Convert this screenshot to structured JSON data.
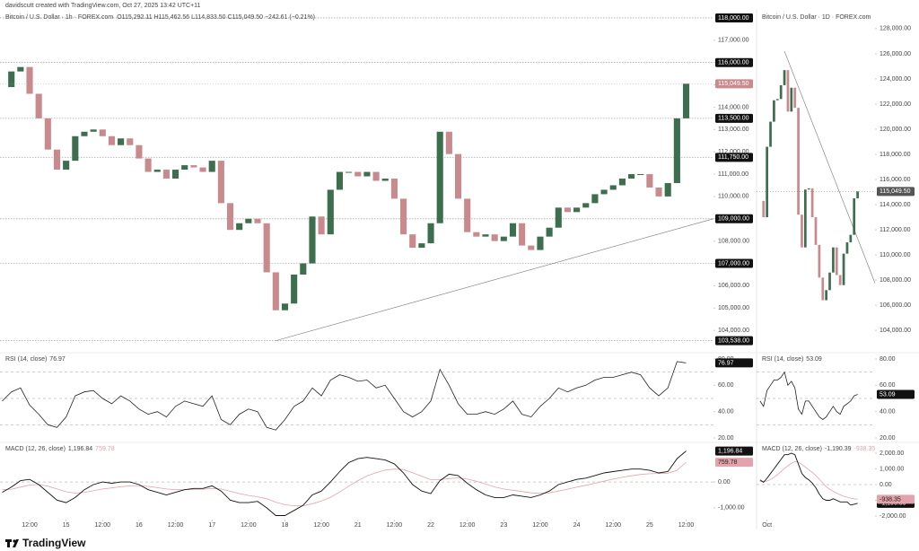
{
  "header": {
    "credit": "davidscutt created with TradingView.com, Oct 27, 2025 13:42 UTC+11"
  },
  "footer": {
    "logo": "TradingView"
  },
  "chart_data": [
    {
      "type": "candlestick",
      "title": "Bitcoin / U.S. Dollar · 1h · FOREX.com",
      "ohlc_text": "O115,292.11 H115,462.56 L114,833.50 C115,049.50 −242.61 (−0.21%)",
      "up_color": "#3d6e4e",
      "down_color": "#c98a8e",
      "close": [
        114900,
        115600,
        115800,
        114600,
        113500,
        112100,
        111200,
        111600,
        112700,
        112900,
        113000,
        112700,
        112300,
        112600,
        112300,
        111700,
        111100,
        111200,
        110800,
        111200,
        111400,
        111300,
        111100,
        111600,
        109700,
        108500,
        108800,
        109000,
        108800,
        106600,
        104900,
        105200,
        106500,
        107000,
        109100,
        108300,
        110300,
        111100,
        111100,
        110900,
        111100,
        110700,
        110800,
        109900,
        108300,
        107700,
        107900,
        108800,
        112900,
        111900,
        109900,
        108400,
        108200,
        108300,
        108000,
        108200,
        108800,
        107800,
        107600,
        108200,
        108600,
        109500,
        109300,
        109500,
        109700,
        110100,
        110300,
        110500,
        110800,
        111000,
        111000,
        110400,
        110000,
        110600,
        113500,
        115050
      ],
      "xlim": [
        -0.25,
        78
      ],
      "xticks": [
        {
          "value": 3,
          "label": "12:00"
        },
        {
          "value": 7,
          "label": "15"
        },
        {
          "value": 11,
          "label": "12:00"
        },
        {
          "value": 15,
          "label": "16"
        },
        {
          "value": 19,
          "label": "12:00"
        },
        {
          "value": 23,
          "label": "17"
        },
        {
          "value": 27,
          "label": "12:00"
        },
        {
          "value": 31,
          "label": "18"
        },
        {
          "value": 35,
          "label": "12:00"
        },
        {
          "value": 39,
          "label": "21"
        },
        {
          "value": 43,
          "label": "12:00"
        },
        {
          "value": 47,
          "label": "22"
        },
        {
          "value": 51,
          "label": "12:00"
        },
        {
          "value": 55,
          "label": "23"
        },
        {
          "value": 59,
          "label": "12:00"
        },
        {
          "value": 63,
          "label": "24"
        },
        {
          "value": 67,
          "label": "12:00"
        },
        {
          "value": 71,
          "label": "25"
        },
        {
          "value": 75,
          "label": "12:00"
        }
      ],
      "ylim": [
        103120,
        118320
      ],
      "yticks": [
        {
          "value": 104000,
          "label": "104,000.00"
        },
        {
          "value": 105000,
          "label": "105,000.00"
        },
        {
          "value": 106000,
          "label": "106,000.00"
        },
        {
          "value": 107000,
          "label": "107,000.00"
        },
        {
          "value": 108000,
          "label": "108,000.00"
        },
        {
          "value": 109000,
          "label": "109,000.00"
        },
        {
          "value": 110000,
          "label": "110,000.00"
        },
        {
          "value": 111000,
          "label": "111,000.00"
        },
        {
          "value": 112000,
          "label": "112,000.00"
        },
        {
          "value": 113000,
          "label": "113,000.00"
        },
        {
          "value": 114000,
          "label": "114,000.00"
        },
        {
          "value": 115000,
          "label": "115,000.00"
        },
        {
          "value": 116000,
          "label": "116,000.00"
        },
        {
          "value": 117000,
          "label": "117,000.00"
        }
      ],
      "levels": [
        {
          "value": 118000,
          "label": "118,000.00"
        },
        {
          "value": 116000,
          "label": "116,000.00"
        },
        {
          "value": 113500,
          "label": "113,500.00"
        },
        {
          "value": 111750,
          "label": "111,750.00"
        },
        {
          "value": 109000,
          "label": "109,000.00"
        },
        {
          "value": 107000,
          "label": "107,000.00"
        },
        {
          "value": 103538,
          "label": "103,538.00"
        }
      ],
      "last_price": {
        "value": 115049.5,
        "label": "115,049.50",
        "color": "#c98a8e"
      },
      "trendline": {
        "x": [
          30,
          78
        ],
        "y": [
          103538,
          109000
        ]
      },
      "rsi": {
        "name": "RSI (14, close)",
        "value_label": "76.97",
        "color": "#222222",
        "values": [
          48,
          55,
          58,
          45,
          38,
          30,
          28,
          36,
          52,
          55,
          56,
          50,
          46,
          52,
          48,
          42,
          38,
          40,
          36,
          44,
          48,
          46,
          44,
          52,
          34,
          30,
          38,
          42,
          40,
          28,
          26,
          34,
          44,
          48,
          58,
          52,
          64,
          68,
          66,
          63,
          64,
          58,
          60,
          50,
          40,
          36,
          40,
          48,
          72,
          60,
          46,
          38,
          38,
          40,
          38,
          42,
          48,
          38,
          36,
          44,
          50,
          58,
          55,
          58,
          60,
          64,
          66,
          66,
          68,
          70,
          68,
          58,
          52,
          58,
          78,
          76.97
        ],
        "ylim": [
          17.3,
          83.4
        ],
        "yticks": [
          {
            "value": 80,
            "label": "80.00"
          },
          {
            "value": 60,
            "label": "60.00"
          },
          {
            "value": 40,
            "label": "40.00"
          },
          {
            "value": 20,
            "label": "20.00"
          }
        ],
        "levels": [
          70,
          50,
          30
        ]
      },
      "macd": {
        "name": "MACD (12, 26, close)",
        "color": "#111111",
        "signal_color": "#e3a3ab",
        "value_label": "1,196.84",
        "signal_label": "759.78",
        "values": [
          -400,
          -200,
          50,
          100,
          -100,
          -400,
          -700,
          -800,
          -600,
          -300,
          -100,
          0,
          -50,
          0,
          0,
          -100,
          -300,
          -400,
          -500,
          -400,
          -300,
          -250,
          -250,
          -150,
          -350,
          -700,
          -800,
          -800,
          -750,
          -1000,
          -1300,
          -1300,
          -1100,
          -900,
          -500,
          -350,
          0,
          400,
          750,
          900,
          950,
          900,
          850,
          700,
          350,
          -100,
          -350,
          -450,
          50,
          300,
          250,
          -50,
          -300,
          -500,
          -600,
          -600,
          -500,
          -550,
          -600,
          -500,
          -350,
          -100,
          0,
          100,
          150,
          250,
          350,
          400,
          450,
          500,
          500,
          450,
          350,
          400,
          900,
          1196.84
        ],
        "signal": [
          -300,
          -280,
          -200,
          -120,
          -100,
          -160,
          -270,
          -380,
          -430,
          -400,
          -340,
          -270,
          -230,
          -180,
          -150,
          -140,
          -170,
          -220,
          -270,
          -300,
          -300,
          -290,
          -280,
          -250,
          -270,
          -360,
          -450,
          -520,
          -570,
          -650,
          -780,
          -880,
          -920,
          -920,
          -840,
          -740,
          -590,
          -390,
          -160,
          50,
          230,
          360,
          460,
          500,
          480,
          360,
          220,
          90,
          90,
          130,
          160,
          110,
          30,
          -80,
          -190,
          -270,
          -320,
          -370,
          -420,
          -440,
          -420,
          -350,
          -280,
          -200,
          -130,
          -50,
          30,
          110,
          180,
          240,
          290,
          320,
          330,
          340,
          450,
          759.78
        ],
        "ylim": [
          -1420,
          1460
        ],
        "yticks": [
          {
            "value": 0,
            "label": "0.00"
          },
          {
            "value": -1000,
            "label": "-1,000.00"
          }
        ]
      }
    },
    {
      "type": "candlestick",
      "title": "Bitcoin / U.S. Dollar · 1D · FOREX.com",
      "up_color": "#3d6e4e",
      "down_color": "#c98a8e",
      "close": [
        114300,
        113000,
        118600,
        120600,
        122300,
        122400,
        123500,
        124700,
        121400,
        123300,
        121700,
        113200,
        110600,
        115200,
        115300,
        113000,
        110800,
        108200,
        106400,
        107200,
        108600,
        110600,
        108400,
        107600,
        110100,
        111000,
        111600,
        114500,
        115049.5
      ],
      "xlim": [
        -1,
        33
      ],
      "xticks": [
        {
          "value": 2,
          "label": "Oct"
        }
      ],
      "ylim": [
        102440,
        129420
      ],
      "yticks": [
        {
          "value": 104000,
          "label": "104,000.00"
        },
        {
          "value": 106000,
          "label": "106,000.00"
        },
        {
          "value": 108000,
          "label": "108,000.00"
        },
        {
          "value": 110000,
          "label": "110,000.00"
        },
        {
          "value": 112000,
          "label": "112,000.00"
        },
        {
          "value": 114000,
          "label": "114,000.00"
        },
        {
          "value": 116000,
          "label": "116,000.00"
        },
        {
          "value": 118000,
          "label": "118,000.00"
        },
        {
          "value": 120000,
          "label": "120,000.00"
        },
        {
          "value": 122000,
          "label": "122,000.00"
        },
        {
          "value": 124000,
          "label": "124,000.00"
        },
        {
          "value": 126000,
          "label": "126,000.00"
        },
        {
          "value": 128000,
          "label": "128,000.00"
        }
      ],
      "last_price": {
        "value": 115049.5,
        "label": "115,049.50",
        "color": "#555555"
      },
      "trendline": {
        "x": [
          7,
          33
        ],
        "y": [
          126200,
          107760
        ]
      },
      "rsi": {
        "name": "RSI (14, close)",
        "value_label": "53.09",
        "color": "#222222",
        "values": [
          48,
          44,
          56,
          60,
          64,
          64,
          66,
          70,
          60,
          63,
          58,
          42,
          38,
          48,
          48,
          44,
          40,
          36,
          34,
          36,
          40,
          44,
          40,
          38,
          44,
          46,
          48,
          52,
          53.09
        ],
        "ylim": [
          17.3,
          83.4
        ],
        "yticks": [
          {
            "value": 80,
            "label": "80.00"
          },
          {
            "value": 60,
            "label": "60.00"
          },
          {
            "value": 40,
            "label": "40.00"
          },
          {
            "value": 20,
            "label": "20.00"
          }
        ],
        "levels": [
          70,
          50,
          30
        ]
      },
      "macd": {
        "name": "MACD (12, 26, close)",
        "color": "#111111",
        "signal_color": "#e3a3ab",
        "value_label": "-1,190.39",
        "signal_label": "-938.35",
        "values": [
          300,
          150,
          400,
          700,
          1000,
          1300,
          1600,
          1900,
          1900,
          2000,
          1900,
          1300,
          700,
          450,
          300,
          100,
          -200,
          -600,
          -900,
          -1000,
          -1000,
          -900,
          -1000,
          -1100,
          -1100,
          -1100,
          -1300,
          -1250,
          -1190.39
        ],
        "signal": [
          200,
          190,
          230,
          320,
          460,
          620,
          820,
          1030,
          1200,
          1360,
          1460,
          1420,
          1280,
          1110,
          950,
          780,
          580,
          340,
          90,
          -130,
          -300,
          -420,
          -540,
          -650,
          -740,
          -800,
          -860,
          -900,
          -938.35
        ],
        "ylim": [
          -2171,
          2571
        ],
        "yticks": [
          {
            "value": 2000,
            "label": "2,000.00"
          },
          {
            "value": 1000,
            "label": "1,000.00"
          },
          {
            "value": 0,
            "label": "0.00"
          },
          {
            "value": -1000,
            "label": "-1,000.00"
          },
          {
            "value": -2000,
            "label": "-2,000.00"
          }
        ]
      }
    }
  ]
}
